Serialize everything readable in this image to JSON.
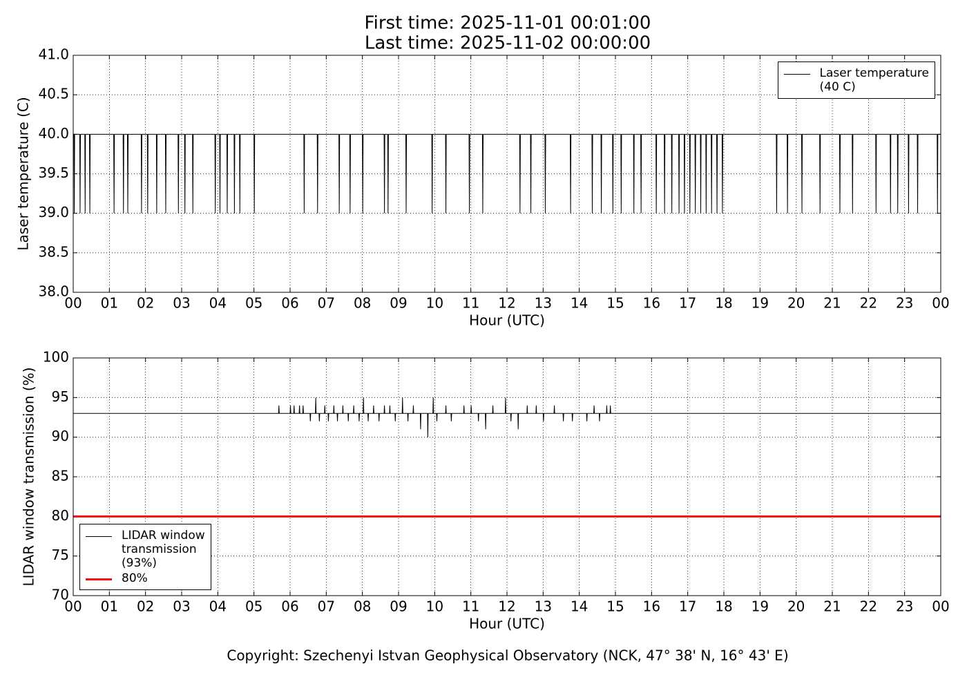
{
  "chart_data": [
    {
      "type": "line",
      "title": [
        "First time: 2025-11-01 00:01:00",
        "Last time: 2025-11-02 00:00:00"
      ],
      "xlabel": "Hour (UTC)",
      "ylabel": "Laser temperature (C)",
      "xlim": [
        0,
        24
      ],
      "ylim": [
        38,
        41
      ],
      "grid": true,
      "legend": "upper right",
      "xticks": [
        {
          "value": 0,
          "label": "00"
        },
        {
          "value": 1,
          "label": "01"
        },
        {
          "value": 2,
          "label": "02"
        },
        {
          "value": 3,
          "label": "03"
        },
        {
          "value": 4,
          "label": "04"
        },
        {
          "value": 5,
          "label": "05"
        },
        {
          "value": 6,
          "label": "06"
        },
        {
          "value": 7,
          "label": "07"
        },
        {
          "value": 8,
          "label": "08"
        },
        {
          "value": 9,
          "label": "09"
        },
        {
          "value": 10,
          "label": "10"
        },
        {
          "value": 11,
          "label": "11"
        },
        {
          "value": 12,
          "label": "12"
        },
        {
          "value": 13,
          "label": "13"
        },
        {
          "value": 14,
          "label": "14"
        },
        {
          "value": 15,
          "label": "15"
        },
        {
          "value": 16,
          "label": "16"
        },
        {
          "value": 17,
          "label": "17"
        },
        {
          "value": 18,
          "label": "18"
        },
        {
          "value": 19,
          "label": "19"
        },
        {
          "value": 20,
          "label": "20"
        },
        {
          "value": 21,
          "label": "21"
        },
        {
          "value": 22,
          "label": "22"
        },
        {
          "value": 23,
          "label": "23"
        },
        {
          "value": 24,
          "label": "00"
        }
      ],
      "yticks": [
        {
          "value": 38,
          "label": "38.0"
        },
        38.5,
        {
          "value": 39,
          "label": "39.0"
        },
        39.5,
        {
          "value": 40,
          "label": "40.0"
        },
        40.5,
        {
          "value": 41,
          "label": "41.0"
        }
      ],
      "series": [
        {
          "name": "Laser temperature\n(40 C)",
          "color": "#000000",
          "linewidth": 1,
          "x": [
            0,
            0.02,
            0.03,
            0.04,
            0.18,
            0.19,
            0.2,
            0.32,
            0.33,
            0.34,
            0.45,
            0.46,
            0.47,
            1.12,
            1.13,
            1.14,
            1.38,
            1.39,
            1.4,
            1.5,
            1.51,
            1.52,
            1.88,
            1.89,
            1.9,
            2.05,
            2.06,
            2.07,
            2.3,
            2.31,
            2.32,
            2.55,
            2.56,
            2.57,
            2.9,
            2.91,
            2.92,
            3.08,
            3.09,
            3.1,
            3.3,
            3.31,
            3.32,
            3.92,
            3.93,
            3.94,
            4.05,
            4.06,
            4.07,
            4.25,
            4.26,
            4.27,
            4.45,
            4.46,
            4.47,
            4.6,
            4.61,
            4.62,
            5,
            5.01,
            5.02,
            6.38,
            6.39,
            6.4,
            6.75,
            6.76,
            6.77,
            7.35,
            7.36,
            7.37,
            7.65,
            7.66,
            7.67,
            8,
            8.01,
            8.02,
            8.6,
            8.61,
            8.62,
            8.7,
            8.71,
            8.72,
            9.2,
            9.21,
            9.22,
            9.92,
            9.93,
            9.94,
            10.3,
            10.31,
            10.32,
            10.95,
            10.96,
            10.97,
            11.32,
            11.33,
            11.34,
            12.35,
            12.36,
            12.37,
            12.65,
            12.66,
            12.67,
            13.05,
            13.06,
            13.07,
            13.75,
            13.76,
            13.77,
            14.35,
            14.36,
            14.37,
            14.6,
            14.61,
            14.62,
            14.92,
            14.93,
            14.94,
            15.15,
            15.16,
            15.17,
            15.5,
            15.51,
            15.52,
            15.7,
            15.71,
            15.72,
            16.12,
            16.13,
            16.14,
            16.35,
            16.36,
            16.37,
            16.55,
            16.56,
            16.57,
            16.75,
            16.76,
            16.77,
            16.9,
            16.91,
            16.92,
            17.05,
            17.06,
            17.07,
            17.2,
            17.21,
            17.22,
            17.35,
            17.36,
            17.37,
            17.5,
            17.51,
            17.52,
            17.65,
            17.66,
            17.67,
            17.8,
            17.81,
            17.82,
            17.95,
            17.96,
            17.97,
            19.45,
            19.46,
            19.47,
            19.75,
            19.76,
            19.77,
            20.15,
            20.16,
            20.17,
            20.65,
            20.66,
            20.67,
            21.2,
            21.21,
            21.22,
            21.55,
            21.56,
            21.57,
            22.2,
            22.21,
            22.22,
            22.6,
            22.61,
            22.62,
            22.8,
            22.81,
            22.82,
            23.1,
            23.11,
            23.12,
            23.35,
            23.36,
            23.37,
            23.9,
            23.91,
            23.92,
            24
          ],
          "values": [
            40,
            40,
            39,
            40,
            40,
            39,
            40,
            40,
            39,
            40,
            40,
            39,
            40,
            40,
            39,
            40,
            40,
            39,
            40,
            40,
            39,
            40,
            40,
            39,
            40,
            40,
            39,
            40,
            40,
            39,
            40,
            40,
            39,
            40,
            40,
            39,
            40,
            40,
            39,
            40,
            40,
            39,
            40,
            40,
            39,
            40,
            40,
            39,
            40,
            40,
            39,
            40,
            40,
            39,
            40,
            40,
            39,
            40,
            40,
            39,
            40,
            40,
            39,
            40,
            40,
            39,
            40,
            40,
            39,
            40,
            40,
            39,
            40,
            40,
            39,
            40,
            40,
            39,
            40,
            40,
            39,
            40,
            40,
            39,
            40,
            40,
            39,
            40,
            40,
            39,
            40,
            40,
            39,
            40,
            40,
            39,
            40,
            40,
            39,
            40,
            40,
            39,
            40,
            40,
            39,
            40,
            40,
            39,
            40,
            40,
            39,
            40,
            40,
            39,
            40,
            40,
            39,
            40,
            40,
            39,
            40,
            40,
            39,
            40,
            40,
            39,
            40,
            40,
            39,
            40,
            40,
            39,
            40,
            40,
            39,
            40,
            40,
            39,
            40,
            40,
            39,
            40,
            40,
            39,
            40,
            40,
            39,
            40,
            40,
            39,
            40,
            40,
            39,
            40,
            40,
            39,
            40,
            40,
            39,
            40,
            40,
            39,
            40,
            40,
            39,
            40,
            40,
            39,
            40,
            40,
            39,
            40,
            40,
            39,
            40,
            40,
            39,
            40,
            40,
            39,
            40,
            40,
            39,
            40,
            40,
            39,
            40,
            40,
            39,
            40,
            40,
            39,
            40,
            40,
            39,
            40,
            40,
            39,
            40,
            40
          ]
        }
      ]
    },
    {
      "type": "line",
      "xlabel": "Hour (UTC)",
      "ylabel": "LIDAR window transmission (%)",
      "xlim": [
        0,
        24
      ],
      "ylim": [
        70,
        100
      ],
      "grid": true,
      "legend": "lower left",
      "xticks": [
        {
          "value": 0,
          "label": "00"
        },
        {
          "value": 1,
          "label": "01"
        },
        {
          "value": 2,
          "label": "02"
        },
        {
          "value": 3,
          "label": "03"
        },
        {
          "value": 4,
          "label": "04"
        },
        {
          "value": 5,
          "label": "05"
        },
        {
          "value": 6,
          "label": "06"
        },
        {
          "value": 7,
          "label": "07"
        },
        {
          "value": 8,
          "label": "08"
        },
        {
          "value": 9,
          "label": "09"
        },
        {
          "value": 10,
          "label": "10"
        },
        {
          "value": 11,
          "label": "11"
        },
        {
          "value": 12,
          "label": "12"
        },
        {
          "value": 13,
          "label": "13"
        },
        {
          "value": 14,
          "label": "14"
        },
        {
          "value": 15,
          "label": "15"
        },
        {
          "value": 16,
          "label": "16"
        },
        {
          "value": 17,
          "label": "17"
        },
        {
          "value": 18,
          "label": "18"
        },
        {
          "value": 19,
          "label": "19"
        },
        {
          "value": 20,
          "label": "20"
        },
        {
          "value": 21,
          "label": "21"
        },
        {
          "value": 22,
          "label": "22"
        },
        {
          "value": 23,
          "label": "23"
        },
        {
          "value": 24,
          "label": "00"
        }
      ],
      "yticks": [
        70,
        75,
        80,
        85,
        90,
        95,
        100
      ],
      "series": [
        {
          "name": "LIDAR window\ntransmission\n(93%)",
          "color": "#000000",
          "linewidth": 1,
          "x": [
            0,
            5.68,
            5.69,
            5.7,
            6,
            6.01,
            6.02,
            6.1,
            6.11,
            6.12,
            6.25,
            6.26,
            6.27,
            6.35,
            6.36,
            6.37,
            6.55,
            6.56,
            6.57,
            6.7,
            6.71,
            6.72,
            6.8,
            6.81,
            6.82,
            6.95,
            6.96,
            6.97,
            7.05,
            7.06,
            7.07,
            7.2,
            7.21,
            7.22,
            7.3,
            7.31,
            7.32,
            7.45,
            7.46,
            7.47,
            7.6,
            7.61,
            7.62,
            7.75,
            7.76,
            7.77,
            7.9,
            7.91,
            7.92,
            8.02,
            8.03,
            8.04,
            8.15,
            8.16,
            8.17,
            8.3,
            8.31,
            8.32,
            8.45,
            8.46,
            8.47,
            8.6,
            8.61,
            8.62,
            8.75,
            8.76,
            8.77,
            8.9,
            8.91,
            8.92,
            9.1,
            9.11,
            9.12,
            9.25,
            9.26,
            9.27,
            9.4,
            9.41,
            9.42,
            9.6,
            9.61,
            9.62,
            9.8,
            9.81,
            9.82,
            9.95,
            9.96,
            9.97,
            10.05,
            10.06,
            10.07,
            10.3,
            10.31,
            10.32,
            10.45,
            10.46,
            10.47,
            10.8,
            10.81,
            10.82,
            11,
            11.01,
            11.02,
            11.2,
            11.21,
            11.22,
            11.4,
            11.41,
            11.42,
            11.6,
            11.61,
            11.62,
            11.95,
            11.96,
            11.97,
            12.1,
            12.11,
            12.12,
            12.3,
            12.31,
            12.32,
            12.55,
            12.56,
            12.57,
            12.8,
            12.81,
            12.82,
            13,
            13.01,
            13.02,
            13.3,
            13.31,
            13.32,
            13.55,
            13.56,
            13.57,
            13.8,
            13.81,
            13.82,
            14.2,
            14.21,
            14.22,
            14.4,
            14.41,
            14.42,
            14.55,
            14.56,
            14.57,
            14.75,
            14.76,
            14.77,
            14.85,
            14.86,
            14.87,
            24
          ],
          "values": [
            93,
            93,
            94,
            93,
            93,
            94,
            93,
            93,
            94,
            93,
            93,
            94,
            93,
            93,
            94,
            93,
            93,
            92,
            93,
            93,
            95,
            93,
            93,
            92,
            93,
            93,
            94,
            93,
            93,
            92,
            93,
            93,
            94,
            93,
            93,
            92,
            93,
            93,
            94,
            93,
            93,
            92,
            93,
            93,
            94,
            93,
            93,
            92,
            93,
            93,
            95,
            93,
            93,
            92,
            93,
            93,
            94,
            93,
            93,
            92,
            93,
            93,
            94,
            93,
            93,
            94,
            93,
            93,
            92,
            93,
            93,
            95,
            93,
            93,
            92,
            93,
            93,
            94,
            93,
            93,
            91,
            93,
            93,
            90,
            93,
            93,
            95,
            93,
            93,
            92,
            93,
            93,
            94,
            93,
            93,
            92,
            93,
            93,
            94,
            93,
            93,
            94,
            93,
            93,
            92,
            93,
            93,
            91,
            93,
            93,
            94,
            93,
            93,
            95,
            93,
            93,
            92,
            93,
            93,
            91,
            93,
            93,
            94,
            93,
            93,
            94,
            93,
            93,
            92,
            93,
            93,
            94,
            93,
            93,
            92,
            93,
            93,
            92,
            93,
            93,
            92,
            93,
            93,
            94,
            93,
            93,
            92,
            93,
            93,
            94,
            93,
            93,
            94,
            93,
            93
          ]
        },
        {
          "name": "80%",
          "color": "#ee1111",
          "linewidth": 3,
          "x": [
            0,
            24
          ],
          "values": [
            80,
            80
          ]
        }
      ]
    }
  ],
  "footer": "Copyright: Szechenyi Istvan Geophysical Observatory (NCK, 47° 38' N, 16° 43' E)"
}
